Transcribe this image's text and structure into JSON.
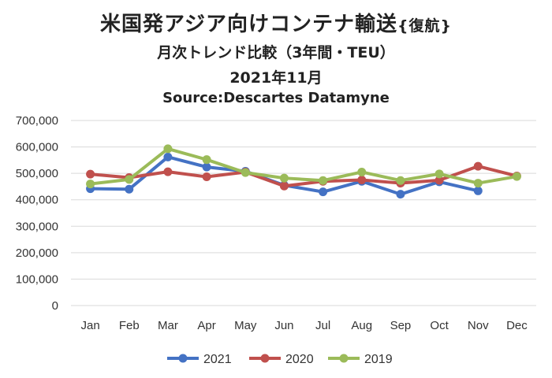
{
  "title": {
    "main": "米国発アジア向けコンテナ輸送",
    "main_suffix": "{復航}",
    "subtitle": "月次トレンド比較（3年間・TEU）",
    "period": "2021年11月",
    "source": "Source:Descartes Datamyne"
  },
  "chart_data": {
    "type": "line",
    "title": "米国発アジア向けコンテナ輸送{復航}",
    "categories": [
      "Jan",
      "Feb",
      "Mar",
      "Apr",
      "May",
      "Jun",
      "Jul",
      "Aug",
      "Sep",
      "Oct",
      "Nov",
      "Dec"
    ],
    "ylim": [
      0,
      700000
    ],
    "yticks": [
      0,
      100000,
      200000,
      300000,
      400000,
      500000,
      600000,
      700000
    ],
    "ytick_labels": [
      "0",
      "100,000",
      "200,000",
      "300,000",
      "400,000",
      "500,000",
      "600,000",
      "700,000"
    ],
    "grid": true,
    "legend_position": "bottom",
    "series": [
      {
        "name": "2021",
        "color": "#4472C4",
        "values": [
          442000,
          440000,
          562000,
          524000,
          508000,
          455000,
          430000,
          470000,
          421000,
          468000,
          434000,
          null
        ]
      },
      {
        "name": "2020",
        "color": "#C0504D",
        "values": [
          497000,
          484000,
          506000,
          487000,
          505000,
          452000,
          470000,
          475000,
          463000,
          474000,
          527000,
          490000
        ]
      },
      {
        "name": "2019",
        "color": "#9BBB59",
        "values": [
          460000,
          477000,
          593000,
          552000,
          503000,
          482000,
          473000,
          505000,
          473000,
          498000,
          463000,
          488000
        ]
      }
    ]
  }
}
